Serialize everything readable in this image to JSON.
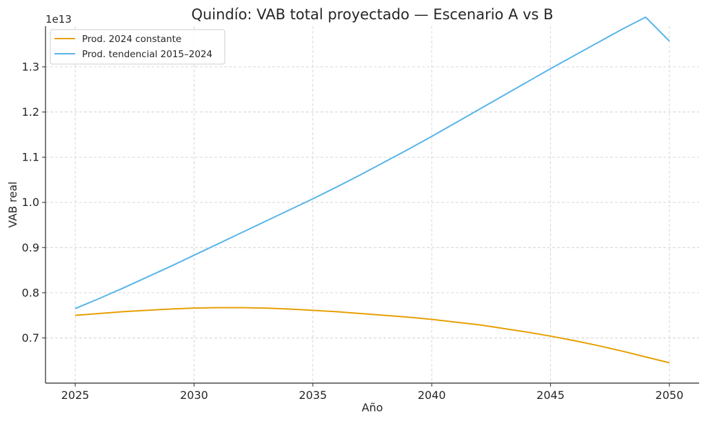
{
  "chart_data": {
    "type": "line",
    "title": "Quindío: VAB total proyectado — Escenario A vs B",
    "xlabel": "Año",
    "ylabel": "VAB real",
    "y_offset_label": "1e13",
    "xlim": [
      2023.75,
      2051.25
    ],
    "ylim": [
      0.6,
      1.39
    ],
    "x_ticks": [
      2025,
      2030,
      2035,
      2040,
      2045,
      2050
    ],
    "x_tick_labels": [
      "2025",
      "2030",
      "2035",
      "2040",
      "2045",
      "2050"
    ],
    "y_ticks": [
      0.7,
      0.8,
      0.9,
      1.0,
      1.1,
      1.2,
      1.3
    ],
    "y_tick_labels": [
      "0.7",
      "0.8",
      "0.9",
      "1.0",
      "1.1",
      "1.2",
      "1.3"
    ],
    "grid": true,
    "legend_position": "top-left",
    "x": [
      2025,
      2026,
      2027,
      2028,
      2029,
      2030,
      2031,
      2032,
      2033,
      2034,
      2035,
      2036,
      2037,
      2038,
      2039,
      2040,
      2041,
      2042,
      2043,
      2044,
      2045,
      2046,
      2047,
      2048,
      2049,
      2050
    ],
    "series": [
      {
        "name": "Prod. 2024 constante",
        "color": "#E69F00",
        "values": [
          0.75,
          0.754,
          0.758,
          0.761,
          0.764,
          0.766,
          0.767,
          0.767,
          0.766,
          0.764,
          0.761,
          0.758,
          0.754,
          0.75,
          0.746,
          0.741,
          0.735,
          0.729,
          0.721,
          0.713,
          0.704,
          0.694,
          0.683,
          0.671,
          0.658,
          0.645
        ]
      },
      {
        "name": "Prod. tendencial 2015–2024",
        "color": "#56B4E9",
        "values": [
          0.765,
          0.787,
          0.81,
          0.834,
          0.858,
          0.883,
          0.908,
          0.933,
          0.958,
          0.983,
          1.008,
          1.034,
          1.061,
          1.089,
          1.117,
          1.146,
          1.176,
          1.206,
          1.236,
          1.266,
          1.296,
          1.325,
          1.354,
          1.383,
          1.41,
          1.357
        ]
      }
    ]
  }
}
